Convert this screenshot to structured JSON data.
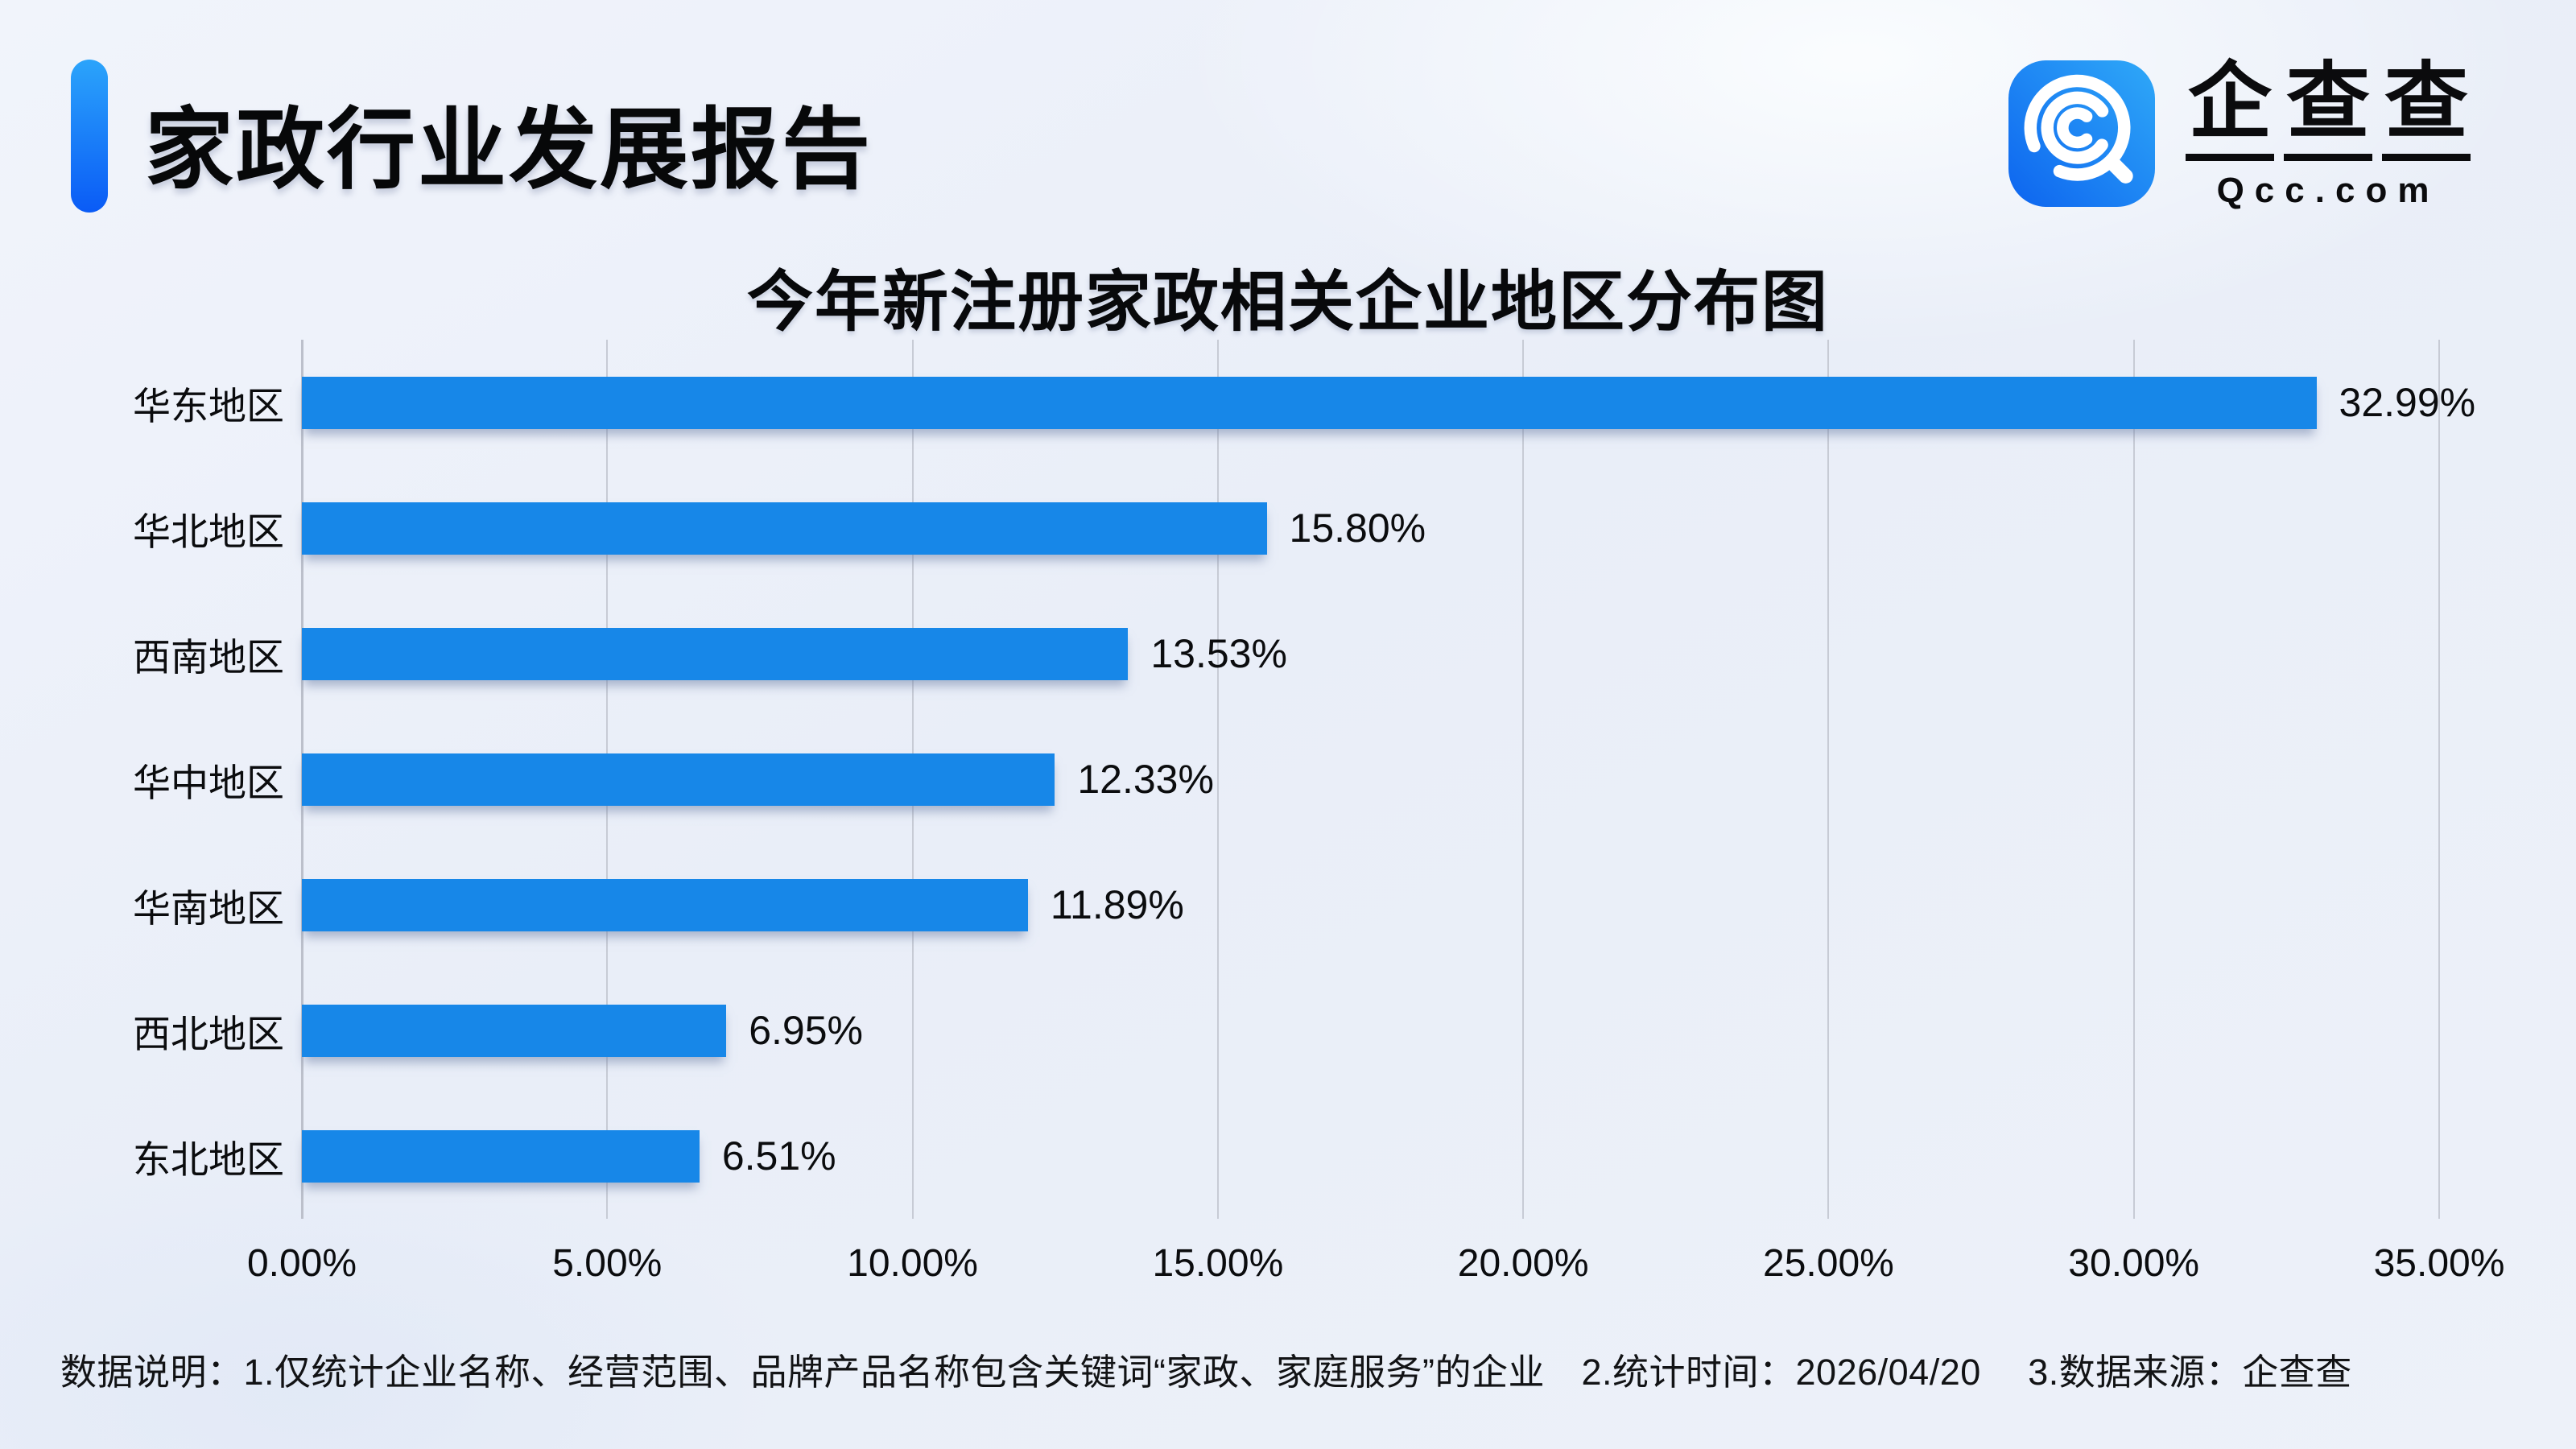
{
  "header": {
    "title": "家政行业发展报告"
  },
  "logo": {
    "brand_cn": "企查查",
    "brand_en": "Qcc.com"
  },
  "chart_data": {
    "type": "bar",
    "orientation": "horizontal",
    "title": "今年新注册家政相关企业地区分布图",
    "categories": [
      "华东地区",
      "华北地区",
      "西南地区",
      "华中地区",
      "华南地区",
      "西北地区",
      "东北地区"
    ],
    "values": [
      32.99,
      15.8,
      13.53,
      12.33,
      11.89,
      6.95,
      6.51
    ],
    "value_labels": [
      "32.99%",
      "15.80%",
      "13.53%",
      "12.33%",
      "11.89%",
      "6.95%",
      "6.51%"
    ],
    "x_ticks": [
      "0.00%",
      "5.00%",
      "10.00%",
      "15.00%",
      "20.00%",
      "25.00%",
      "30.00%",
      "35.00%"
    ],
    "xlim": [
      0,
      35
    ],
    "xlabel": "",
    "ylabel": "",
    "grid": true,
    "legend": "none",
    "bar_color": "#1787e8",
    "gridline_color": "#c7cbd5"
  },
  "footnote": {
    "text": "数据说明：1.仅统计企业名称、经营范围、品牌产品名称包含关键词“家政、家庭服务”的企业　2.统计时间：2026/04/20　 3.数据来源：企查查"
  },
  "colors": {
    "background": "#edf1f9",
    "accent_gradient_top": "#2ba4fb",
    "accent_gradient_bottom": "#0a5bf6",
    "logo_gradient_left": "#0d64ef",
    "logo_gradient_right": "#2fa9f8",
    "text": "#0b0c0e"
  }
}
